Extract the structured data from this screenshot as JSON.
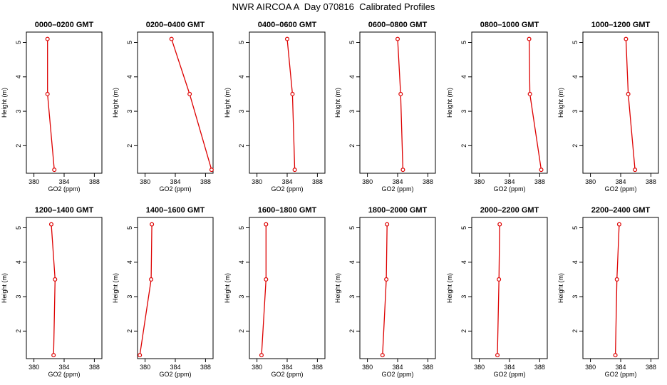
{
  "title": "NWR AIRCOA A  Day 070816  Calibrated Profiles",
  "chart_data": [
    {
      "type": "line",
      "title": "0000–0200 GMT",
      "xlabel": "GO2 (ppm)",
      "ylabel": "Height (m)",
      "xlim": [
        379,
        389
      ],
      "ylim": [
        1.2,
        5.3
      ],
      "xticks": [
        380,
        384,
        388
      ],
      "yticks": [
        2,
        3,
        4,
        5
      ],
      "x": [
        381.8,
        381.8,
        382.7
      ],
      "y": [
        5.1,
        3.5,
        1.3
      ]
    },
    {
      "type": "line",
      "title": "0200–0400 GMT",
      "xlabel": "GO2 (ppm)",
      "ylabel": "Height (m)",
      "xlim": [
        379,
        389
      ],
      "ylim": [
        1.2,
        5.3
      ],
      "xticks": [
        380,
        384,
        388
      ],
      "yticks": [
        2,
        3,
        4,
        5
      ],
      "x": [
        383.5,
        385.9,
        388.8
      ],
      "y": [
        5.1,
        3.5,
        1.3
      ]
    },
    {
      "type": "line",
      "title": "0400–0600 GMT",
      "xlabel": "GO2 (ppm)",
      "ylabel": "Height (m)",
      "xlim": [
        379,
        389
      ],
      "ylim": [
        1.2,
        5.3
      ],
      "xticks": [
        380,
        384,
        388
      ],
      "yticks": [
        2,
        3,
        4,
        5
      ],
      "x": [
        384.0,
        384.7,
        385.0
      ],
      "y": [
        5.1,
        3.5,
        1.3
      ]
    },
    {
      "type": "line",
      "title": "0600–0800 GMT",
      "xlabel": "GO2 (ppm)",
      "ylabel": "Height (m)",
      "xlim": [
        379,
        389
      ],
      "ylim": [
        1.2,
        5.3
      ],
      "xticks": [
        380,
        384,
        388
      ],
      "yticks": [
        2,
        3,
        4,
        5
      ],
      "x": [
        384.0,
        384.4,
        384.7
      ],
      "y": [
        5.1,
        3.5,
        1.3
      ]
    },
    {
      "type": "line",
      "title": "0800–1000 GMT",
      "xlabel": "GO2 (ppm)",
      "ylabel": "Height (m)",
      "xlim": [
        379,
        389
      ],
      "ylim": [
        1.2,
        5.3
      ],
      "xticks": [
        380,
        384,
        388
      ],
      "yticks": [
        2,
        3,
        4,
        5
      ],
      "x": [
        386.6,
        386.7,
        388.2
      ],
      "y": [
        5.1,
        3.5,
        1.3
      ]
    },
    {
      "type": "line",
      "title": "1000–1200 GMT",
      "xlabel": "GO2 (ppm)",
      "ylabel": "Height (m)",
      "xlim": [
        379,
        389
      ],
      "ylim": [
        1.2,
        5.3
      ],
      "xticks": [
        380,
        384,
        388
      ],
      "yticks": [
        2,
        3,
        4,
        5
      ],
      "x": [
        384.7,
        385.0,
        385.9
      ],
      "y": [
        5.1,
        3.5,
        1.3
      ]
    },
    {
      "type": "line",
      "title": "1200–1400 GMT",
      "xlabel": "GO2 (ppm)",
      "ylabel": "Height (m)",
      "xlim": [
        379,
        389
      ],
      "ylim": [
        1.2,
        5.3
      ],
      "xticks": [
        380,
        384,
        388
      ],
      "yticks": [
        2,
        3,
        4,
        5
      ],
      "x": [
        382.3,
        382.8,
        382.6
      ],
      "y": [
        5.1,
        3.5,
        1.3
      ]
    },
    {
      "type": "line",
      "title": "1400–1600 GMT",
      "xlabel": "GO2 (ppm)",
      "ylabel": "Height (m)",
      "xlim": [
        379,
        389
      ],
      "ylim": [
        1.2,
        5.3
      ],
      "xticks": [
        380,
        384,
        388
      ],
      "yticks": [
        2,
        3,
        4,
        5
      ],
      "x": [
        380.9,
        380.8,
        379.3
      ],
      "y": [
        5.1,
        3.5,
        1.3
      ]
    },
    {
      "type": "line",
      "title": "1600–1800 GMT",
      "xlabel": "GO2 (ppm)",
      "ylabel": "Height (m)",
      "xlim": [
        379,
        389
      ],
      "ylim": [
        1.2,
        5.3
      ],
      "xticks": [
        380,
        384,
        388
      ],
      "yticks": [
        2,
        3,
        4,
        5
      ],
      "x": [
        381.2,
        381.2,
        380.6
      ],
      "y": [
        5.1,
        3.5,
        1.3
      ]
    },
    {
      "type": "line",
      "title": "1800–2000 GMT",
      "xlabel": "GO2 (ppm)",
      "ylabel": "Height (m)",
      "xlim": [
        379,
        389
      ],
      "ylim": [
        1.2,
        5.3
      ],
      "xticks": [
        380,
        384,
        388
      ],
      "yticks": [
        2,
        3,
        4,
        5
      ],
      "x": [
        382.6,
        382.5,
        382.0
      ],
      "y": [
        5.1,
        3.5,
        1.3
      ]
    },
    {
      "type": "line",
      "title": "2000–2200 GMT",
      "xlabel": "GO2 (ppm)",
      "ylabel": "Height (m)",
      "xlim": [
        379,
        389
      ],
      "ylim": [
        1.2,
        5.3
      ],
      "xticks": [
        380,
        384,
        388
      ],
      "yticks": [
        2,
        3,
        4,
        5
      ],
      "x": [
        382.7,
        382.6,
        382.4
      ],
      "y": [
        5.1,
        3.5,
        1.3
      ]
    },
    {
      "type": "line",
      "title": "2200–2400 GMT",
      "xlabel": "GO2 (ppm)",
      "ylabel": "Height (m)",
      "xlim": [
        379,
        389
      ],
      "ylim": [
        1.2,
        5.3
      ],
      "xticks": [
        380,
        384,
        388
      ],
      "yticks": [
        2,
        3,
        4,
        5
      ],
      "x": [
        383.8,
        383.5,
        383.3
      ],
      "y": [
        5.1,
        3.5,
        1.3
      ]
    }
  ],
  "series_color": "#dd0000"
}
